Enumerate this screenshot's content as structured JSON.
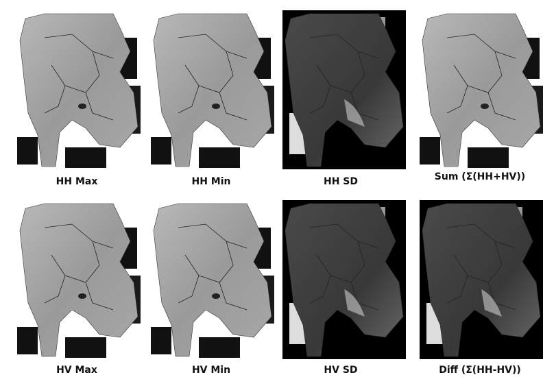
{
  "panels": [
    {
      "label": "HH Max"
    },
    {
      "label": "HH Min"
    },
    {
      "label": "HH SD"
    },
    {
      "label": "Sum (Σ(HH+HV))"
    },
    {
      "label": "HV Max"
    },
    {
      "label": "HV Min"
    },
    {
      "label": "HV SD"
    },
    {
      "label": "Diff (Σ(HH-HV))"
    }
  ]
}
